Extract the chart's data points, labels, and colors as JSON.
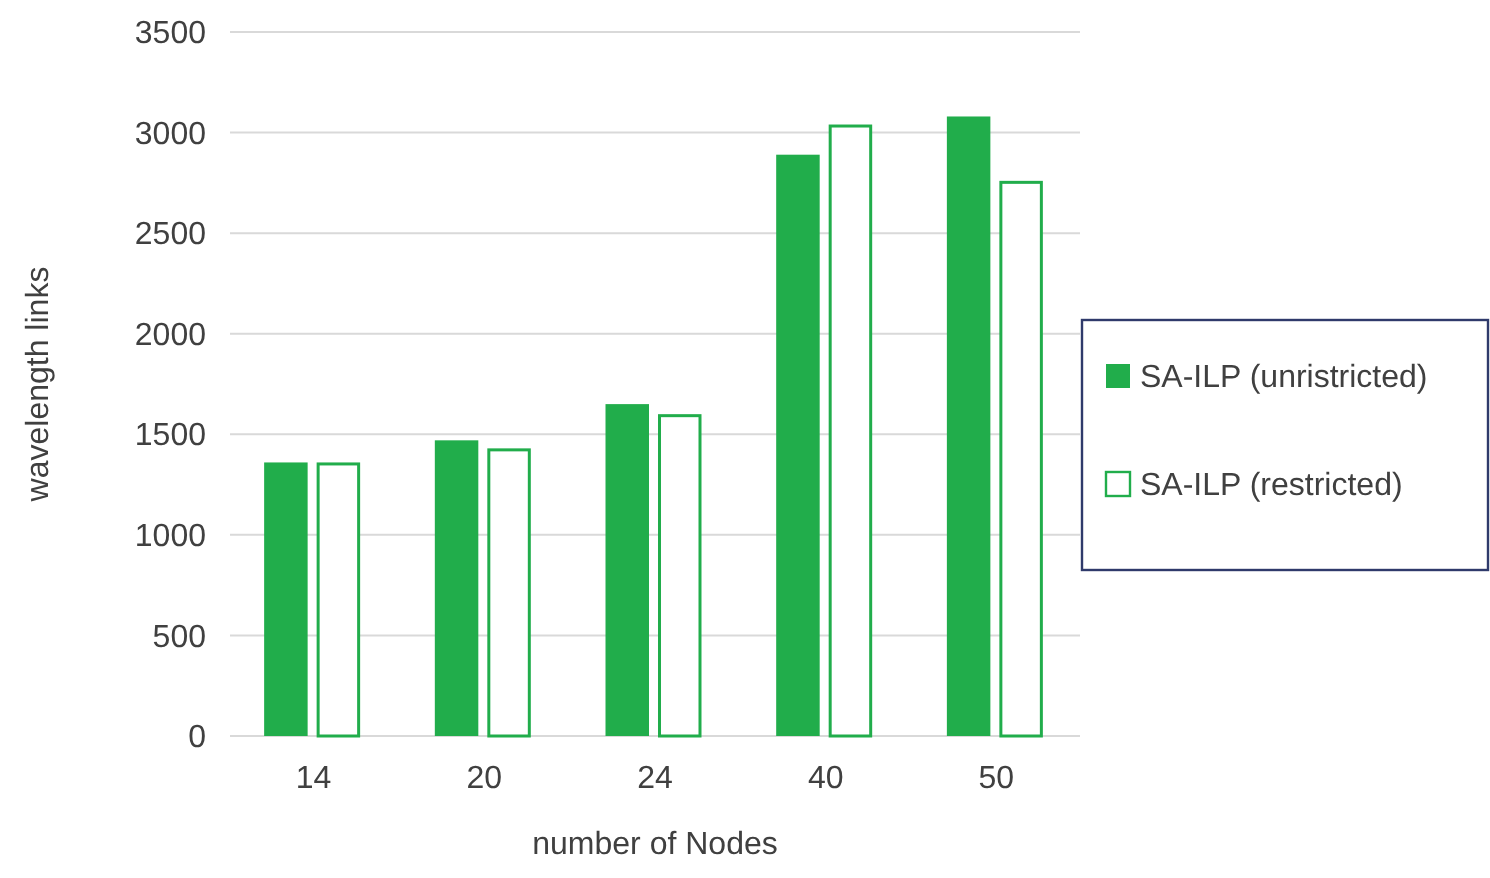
{
  "chart_data": {
    "type": "bar",
    "xlabel": "number of Nodes",
    "ylabel": "wavelength links",
    "categories": [
      "14",
      "20",
      "24",
      "40",
      "50"
    ],
    "series": [
      {
        "name": "SA-ILP (unristricted)",
        "color": "#21ad4b",
        "values": [
          1360,
          1470,
          1650,
          2890,
          3080
        ]
      },
      {
        "name": "SA-ILP (restricted)",
        "color": "#21ad4b",
        "values": [
          1360,
          1430,
          1600,
          3040,
          2760
        ]
      }
    ],
    "ylim": [
      0,
      3500
    ],
    "yticks": [
      0,
      500,
      1000,
      1500,
      2000,
      2500,
      3000,
      3500
    ],
    "grid": "y",
    "legend": "right"
  }
}
